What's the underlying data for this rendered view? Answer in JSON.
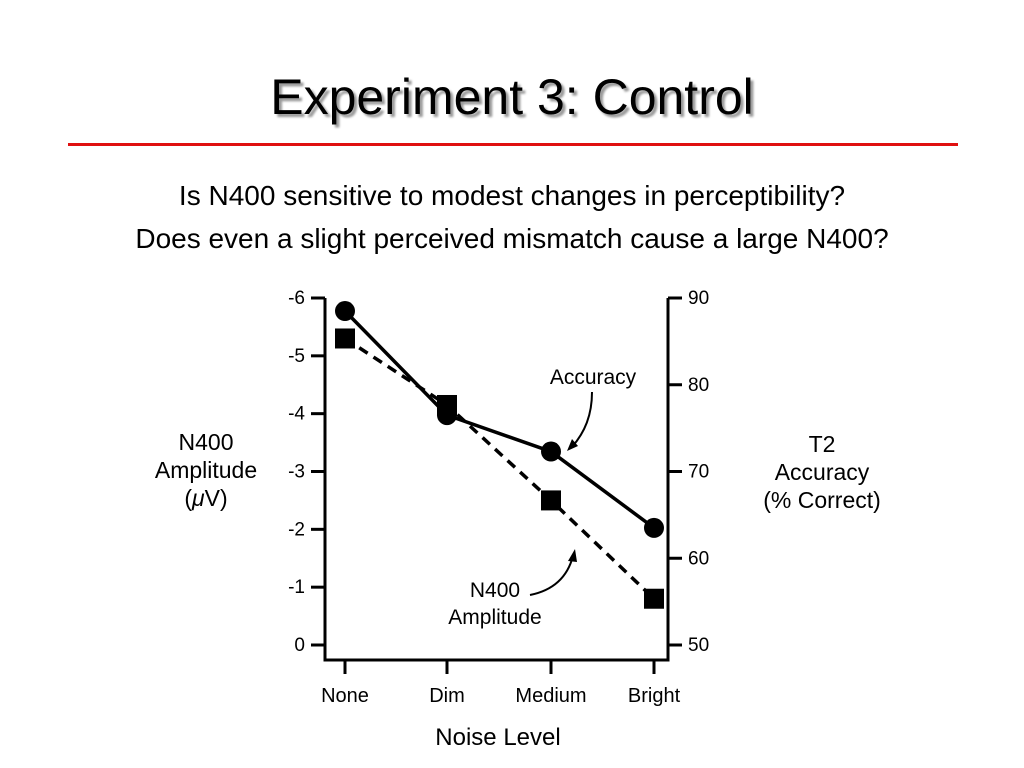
{
  "slide": {
    "title": "Experiment 3: Control",
    "question_1": "Is N400 sensitive to modest changes in perceptibility?",
    "question_2": "Does even a slight perceived mismatch cause a large N400?",
    "title_rule_color": "#e01010"
  },
  "chart_data": {
    "type": "line",
    "categories": [
      "None",
      "Dim",
      "Medium",
      "Bright"
    ],
    "xlabel": "Noise Level",
    "left_axis": {
      "label_lines": [
        "N400",
        "Amplitude"
      ],
      "label_unit_open": "(",
      "label_unit_symbol": "μ",
      "label_unit_rest": "V)",
      "ylim": [
        0,
        -6
      ],
      "inverted": true,
      "ticks": [
        0,
        -1,
        -2,
        -3,
        -4,
        -5,
        -6
      ]
    },
    "right_axis": {
      "label_lines": [
        "T2",
        "Accuracy",
        "(% Correct)"
      ],
      "ylim": [
        50,
        90
      ],
      "ticks": [
        50,
        60,
        70,
        80,
        90
      ]
    },
    "series": [
      {
        "name": "Accuracy",
        "axis": "right",
        "line_style": "solid",
        "marker": "circle",
        "values": [
          88.5,
          76.5,
          72.3,
          63.5
        ]
      },
      {
        "name": "N400 Amplitude",
        "axis": "left",
        "line_style": "dashed",
        "marker": "square",
        "values": [
          -5.3,
          -4.15,
          -2.5,
          -0.8
        ]
      }
    ],
    "annotations": {
      "accuracy_label": "Accuracy",
      "n400_label_line1": "N400",
      "n400_label_line2": "Amplitude"
    },
    "grid": false,
    "legend": "none"
  }
}
